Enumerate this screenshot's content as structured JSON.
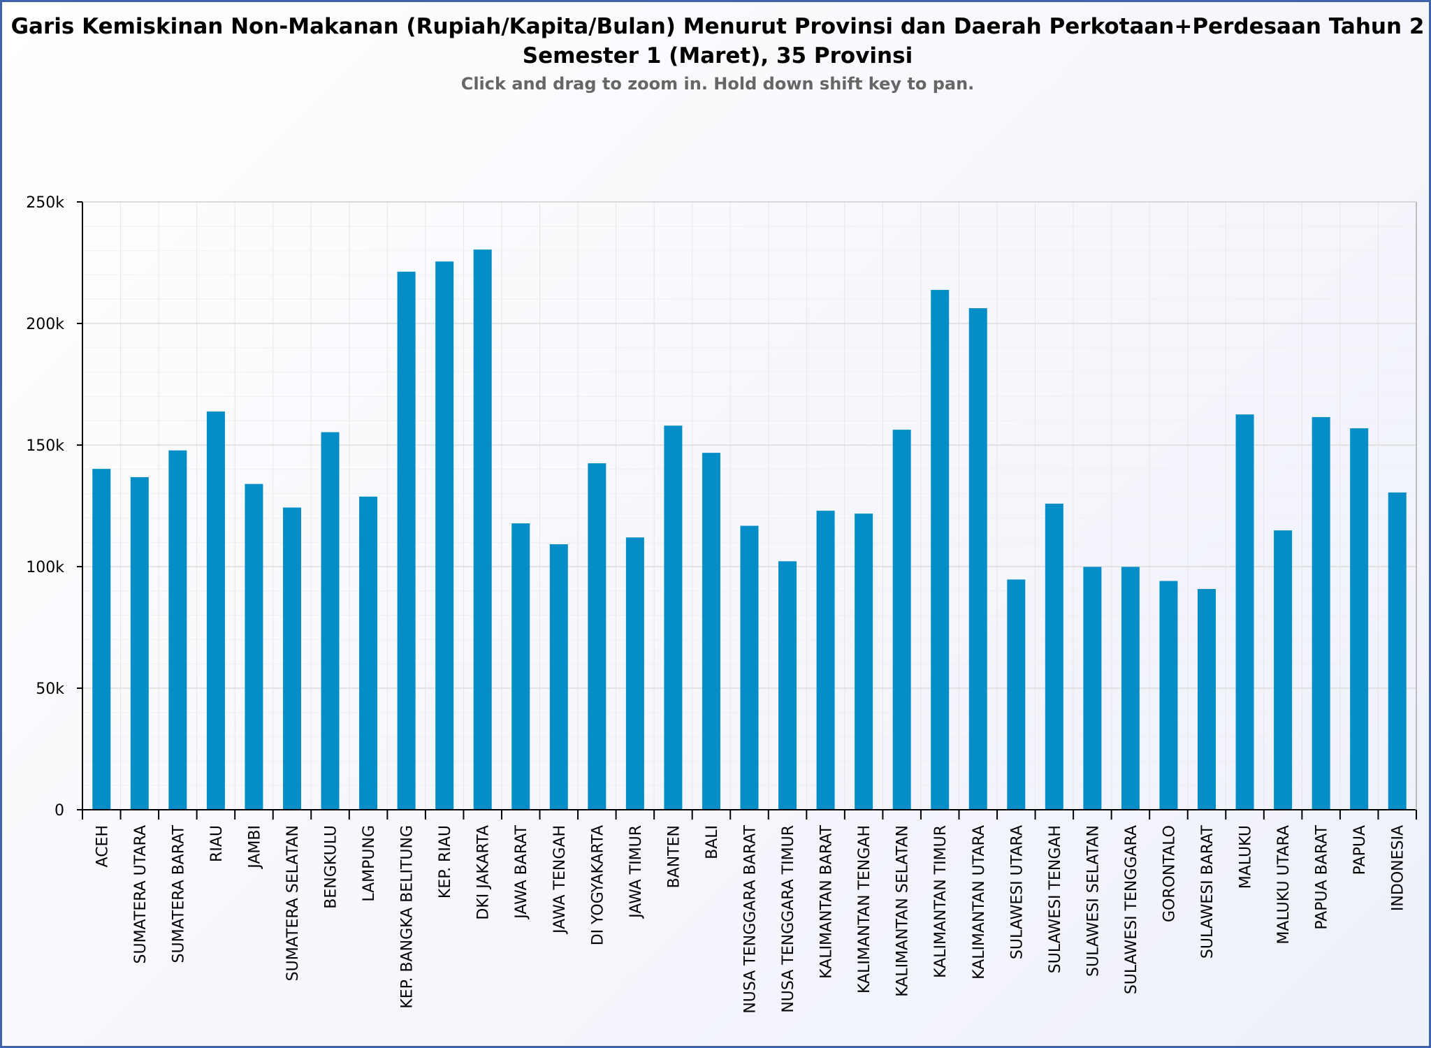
{
  "chart_data": {
    "type": "bar",
    "title_lines": [
      "Garis Kemiskinan Non-Makanan (Rupiah/Kapita/Bulan) Menurut Provinsi dan Daerah Perkotaan+Perdesaan Tahun 2",
      "Semester 1 (Maret), 35 Provinsi"
    ],
    "subtitle": "Click and drag to zoom in. Hold down shift key to pan.",
    "categories": [
      "ACEH",
      "SUMATERA UTARA",
      "SUMATERA BARAT",
      "RIAU",
      "JAMBI",
      "SUMATERA SELATAN",
      "BENGKULU",
      "LAMPUNG",
      "KEP. BANGKA BELITUNG",
      "KEP. RIAU",
      "DKI JAKARTA",
      "JAWA BARAT",
      "JAWA TENGAH",
      "DI YOGYAKARTA",
      "JAWA TIMUR",
      "BANTEN",
      "BALI",
      "NUSA TENGGARA BARAT",
      "NUSA TENGGARA TIMUR",
      "KALIMANTAN BARAT",
      "KALIMANTAN TENGAH",
      "KALIMANTAN SELATAN",
      "KALIMANTAN TIMUR",
      "KALIMANTAN UTARA",
      "SULAWESI UTARA",
      "SULAWESI TENGAH",
      "SULAWESI SELATAN",
      "SULAWESI TENGGARA",
      "GORONTALO",
      "SULAWESI BARAT",
      "MALUKU",
      "MALUKU UTARA",
      "PAPUA BARAT",
      "PAPUA",
      "INDONESIA"
    ],
    "values": [
      140200,
      136800,
      147800,
      163800,
      134000,
      124300,
      155300,
      128800,
      221300,
      225500,
      230400,
      117800,
      109200,
      142500,
      112000,
      158000,
      146800,
      116800,
      102200,
      123000,
      121800,
      156300,
      213800,
      206300,
      94700,
      125900,
      99900,
      99900,
      94100,
      90800,
      162600,
      114900,
      161500,
      156900,
      130500
    ],
    "ylim": [
      0,
      250000
    ],
    "y_ticks": [
      0,
      50000,
      100000,
      150000,
      200000,
      250000
    ],
    "y_tick_labels": [
      "0",
      "50k",
      "100k",
      "150k",
      "200k",
      "250k"
    ],
    "bar_color": "#058dc7",
    "grid": true,
    "legend": "none"
  }
}
